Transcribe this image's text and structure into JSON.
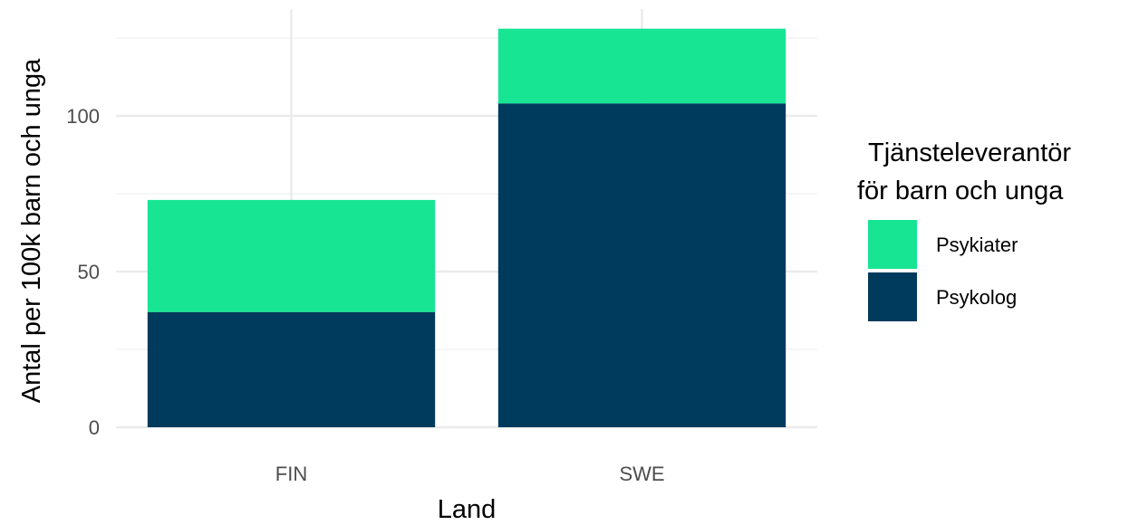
{
  "chart_data": {
    "type": "bar",
    "stacked": true,
    "categories": [
      "FIN",
      "SWE"
    ],
    "series": [
      {
        "name": "Psykolog",
        "values": [
          37,
          104
        ],
        "color": "#003a5d"
      },
      {
        "name": "Psykiater",
        "values": [
          36,
          24
        ],
        "color": "#17e594"
      }
    ],
    "xlabel": "Land",
    "ylabel": "Antal per 100k barn och unga",
    "ylim": [
      0,
      130
    ],
    "yticks": [
      0,
      50,
      100
    ],
    "grid": true,
    "legend": {
      "position": "right",
      "title_lines": [
        "Tjänsteleverantör",
        "för barn och unga"
      ],
      "entries": [
        {
          "name": "Psykiater",
          "color": "#17e594"
        },
        {
          "name": "Psykolog",
          "color": "#003a5d"
        }
      ]
    },
    "colors": {
      "grid_major": "#ebebeb",
      "grid_minor": "#f3f3f3"
    }
  }
}
